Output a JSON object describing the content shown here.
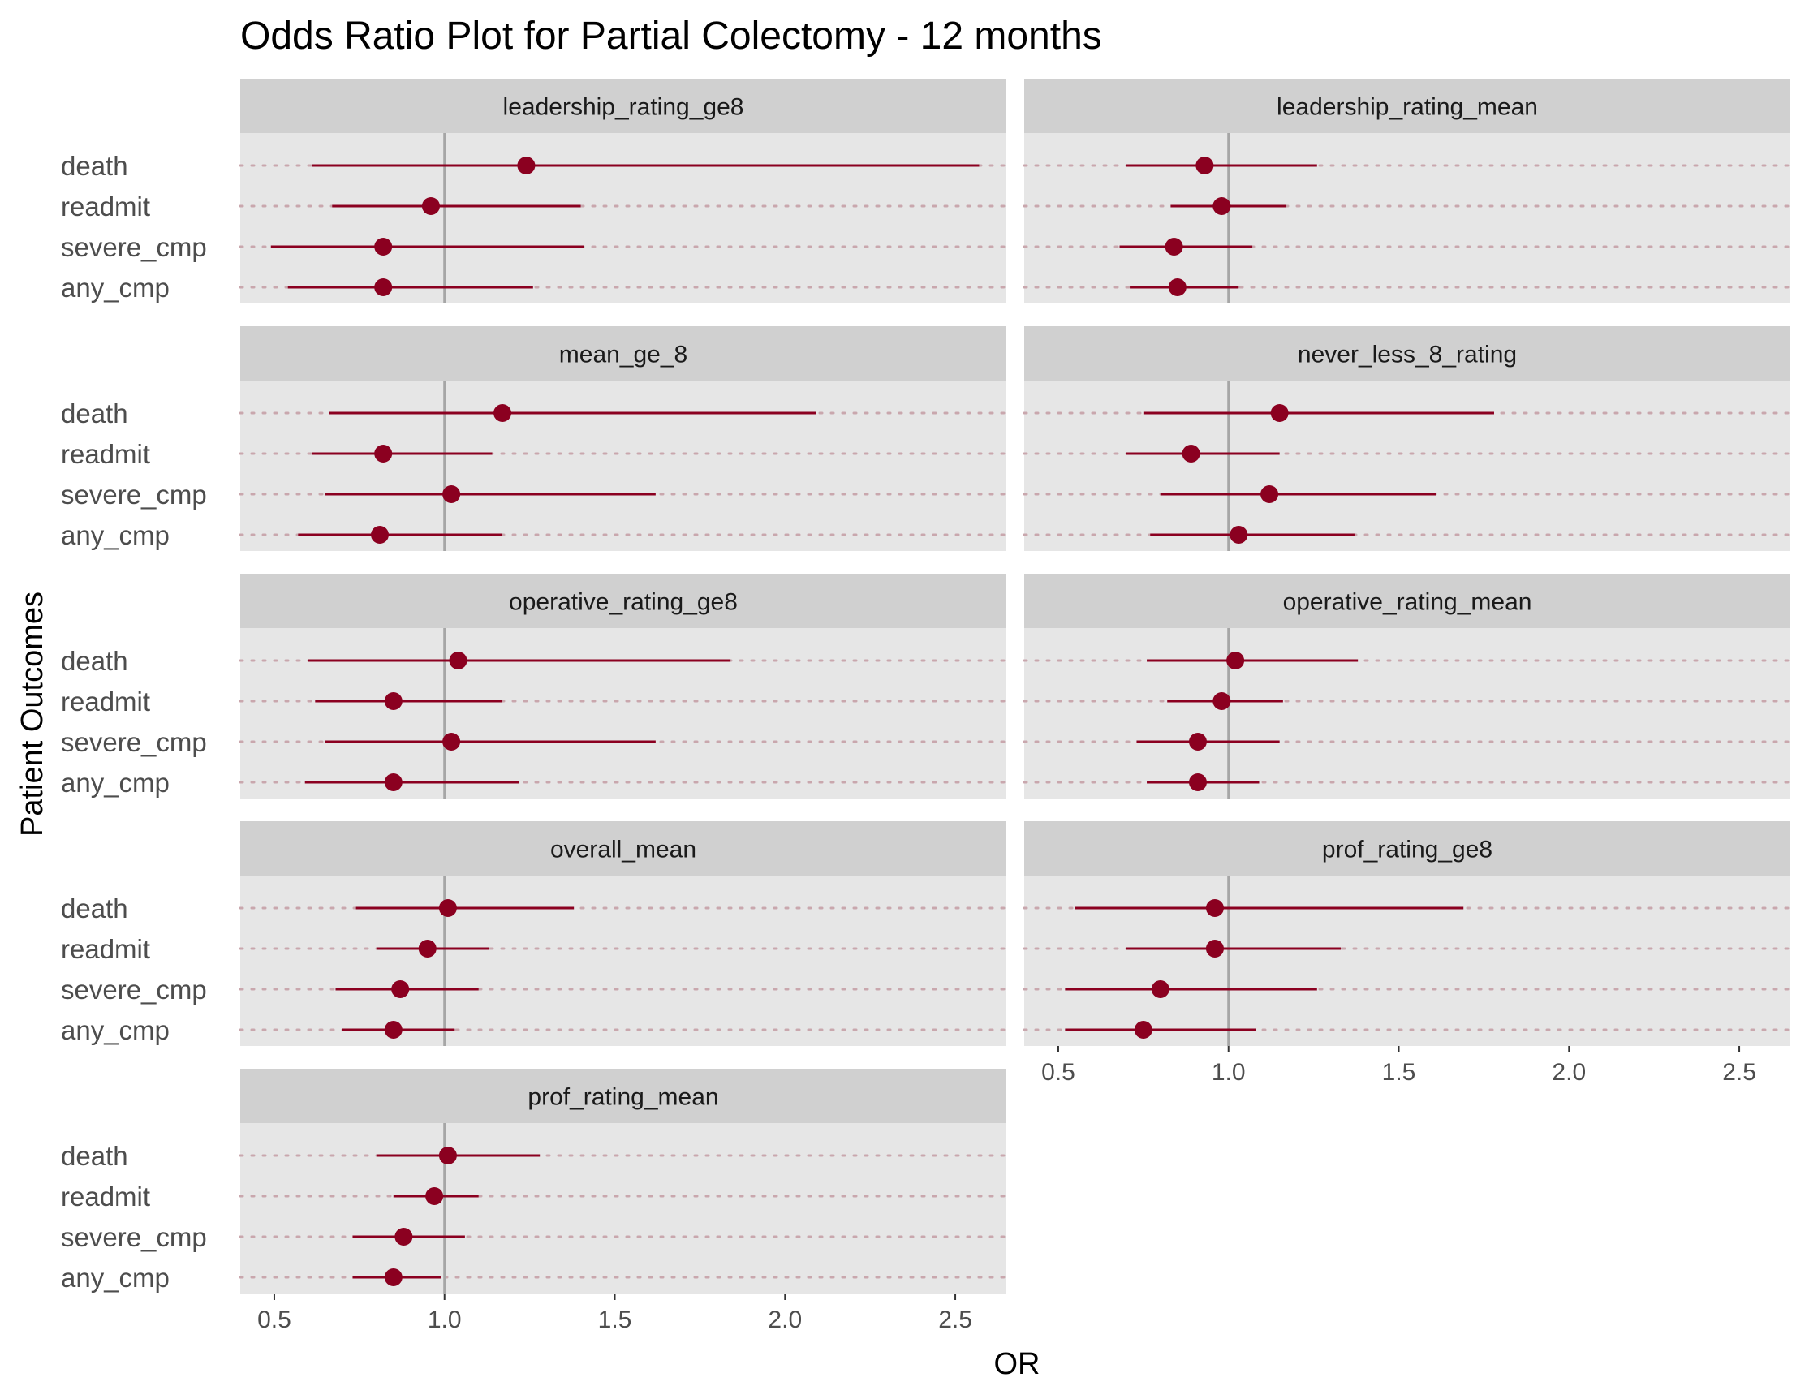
{
  "chart_data": {
    "type": "scatter",
    "subtype": "forest-plot (point estimate with confidence interval), faceted",
    "title": "Odds Ratio Plot for Partial Colectomy - 12 months",
    "xlabel": "OR",
    "ylabel": "Patient Outcomes",
    "xlim": [
      0.4,
      2.65
    ],
    "x_ticks": [
      0.5,
      1.0,
      1.5,
      2.0,
      2.5
    ],
    "x_tick_labels": [
      "0.5",
      "1.0",
      "1.5",
      "2.0",
      "2.5"
    ],
    "reference_line_x": 1.0,
    "outcomes": [
      "death",
      "readmit",
      "severe_cmp",
      "any_cmp"
    ],
    "grid": "horizontal dotted lines at each outcome",
    "facet_layout": "5 rows x 2 columns, 9 panels",
    "colors": {
      "point": "#8b0020",
      "panel_background": "#e6e6e6",
      "strip_background": "#d0d0d0",
      "reference_line": "#a6a6a6",
      "row_grid": "#c9a7ad"
    },
    "facets": [
      {
        "name": "leadership_rating_ge8",
        "points": [
          {
            "outcome": "death",
            "or": 1.24,
            "lower": 0.61,
            "upper": 2.57
          },
          {
            "outcome": "readmit",
            "or": 0.96,
            "lower": 0.67,
            "upper": 1.4
          },
          {
            "outcome": "severe_cmp",
            "or": 0.82,
            "lower": 0.49,
            "upper": 1.41
          },
          {
            "outcome": "any_cmp",
            "or": 0.82,
            "lower": 0.54,
            "upper": 1.26
          }
        ]
      },
      {
        "name": "leadership_rating_mean",
        "points": [
          {
            "outcome": "death",
            "or": 0.93,
            "lower": 0.7,
            "upper": 1.26
          },
          {
            "outcome": "readmit",
            "or": 0.98,
            "lower": 0.83,
            "upper": 1.17
          },
          {
            "outcome": "severe_cmp",
            "or": 0.84,
            "lower": 0.68,
            "upper": 1.07
          },
          {
            "outcome": "any_cmp",
            "or": 0.85,
            "lower": 0.71,
            "upper": 1.03
          }
        ]
      },
      {
        "name": "mean_ge_8",
        "points": [
          {
            "outcome": "death",
            "or": 1.17,
            "lower": 0.66,
            "upper": 2.09
          },
          {
            "outcome": "readmit",
            "or": 0.82,
            "lower": 0.61,
            "upper": 1.14
          },
          {
            "outcome": "severe_cmp",
            "or": 1.02,
            "lower": 0.65,
            "upper": 1.62
          },
          {
            "outcome": "any_cmp",
            "or": 0.81,
            "lower": 0.57,
            "upper": 1.17
          }
        ]
      },
      {
        "name": "never_less_8_rating",
        "points": [
          {
            "outcome": "death",
            "or": 1.15,
            "lower": 0.75,
            "upper": 1.78
          },
          {
            "outcome": "readmit",
            "or": 0.89,
            "lower": 0.7,
            "upper": 1.15
          },
          {
            "outcome": "severe_cmp",
            "or": 1.12,
            "lower": 0.8,
            "upper": 1.61
          },
          {
            "outcome": "any_cmp",
            "or": 1.03,
            "lower": 0.77,
            "upper": 1.37
          }
        ]
      },
      {
        "name": "operative_rating_ge8",
        "points": [
          {
            "outcome": "death",
            "or": 1.04,
            "lower": 0.6,
            "upper": 1.84
          },
          {
            "outcome": "readmit",
            "or": 0.85,
            "lower": 0.62,
            "upper": 1.17
          },
          {
            "outcome": "severe_cmp",
            "or": 1.02,
            "lower": 0.65,
            "upper": 1.62
          },
          {
            "outcome": "any_cmp",
            "or": 0.85,
            "lower": 0.59,
            "upper": 1.22
          }
        ]
      },
      {
        "name": "operative_rating_mean",
        "points": [
          {
            "outcome": "death",
            "or": 1.02,
            "lower": 0.76,
            "upper": 1.38
          },
          {
            "outcome": "readmit",
            "or": 0.98,
            "lower": 0.82,
            "upper": 1.16
          },
          {
            "outcome": "severe_cmp",
            "or": 0.91,
            "lower": 0.73,
            "upper": 1.15
          },
          {
            "outcome": "any_cmp",
            "or": 0.91,
            "lower": 0.76,
            "upper": 1.09
          }
        ]
      },
      {
        "name": "overall_mean",
        "points": [
          {
            "outcome": "death",
            "or": 1.01,
            "lower": 0.74,
            "upper": 1.38
          },
          {
            "outcome": "readmit",
            "or": 0.95,
            "lower": 0.8,
            "upper": 1.13
          },
          {
            "outcome": "severe_cmp",
            "or": 0.87,
            "lower": 0.68,
            "upper": 1.1
          },
          {
            "outcome": "any_cmp",
            "or": 0.85,
            "lower": 0.7,
            "upper": 1.03
          }
        ]
      },
      {
        "name": "prof_rating_ge8",
        "points": [
          {
            "outcome": "death",
            "or": 0.96,
            "lower": 0.55,
            "upper": 1.69
          },
          {
            "outcome": "readmit",
            "or": 0.96,
            "lower": 0.7,
            "upper": 1.33
          },
          {
            "outcome": "severe_cmp",
            "or": 0.8,
            "lower": 0.52,
            "upper": 1.26
          },
          {
            "outcome": "any_cmp",
            "or": 0.75,
            "lower": 0.52,
            "upper": 1.08
          }
        ]
      },
      {
        "name": "prof_rating_mean",
        "points": [
          {
            "outcome": "death",
            "or": 1.01,
            "lower": 0.8,
            "upper": 1.28
          },
          {
            "outcome": "readmit",
            "or": 0.97,
            "lower": 0.85,
            "upper": 1.1
          },
          {
            "outcome": "severe_cmp",
            "or": 0.88,
            "lower": 0.73,
            "upper": 1.06
          },
          {
            "outcome": "any_cmp",
            "or": 0.85,
            "lower": 0.73,
            "upper": 0.99
          }
        ]
      }
    ]
  }
}
